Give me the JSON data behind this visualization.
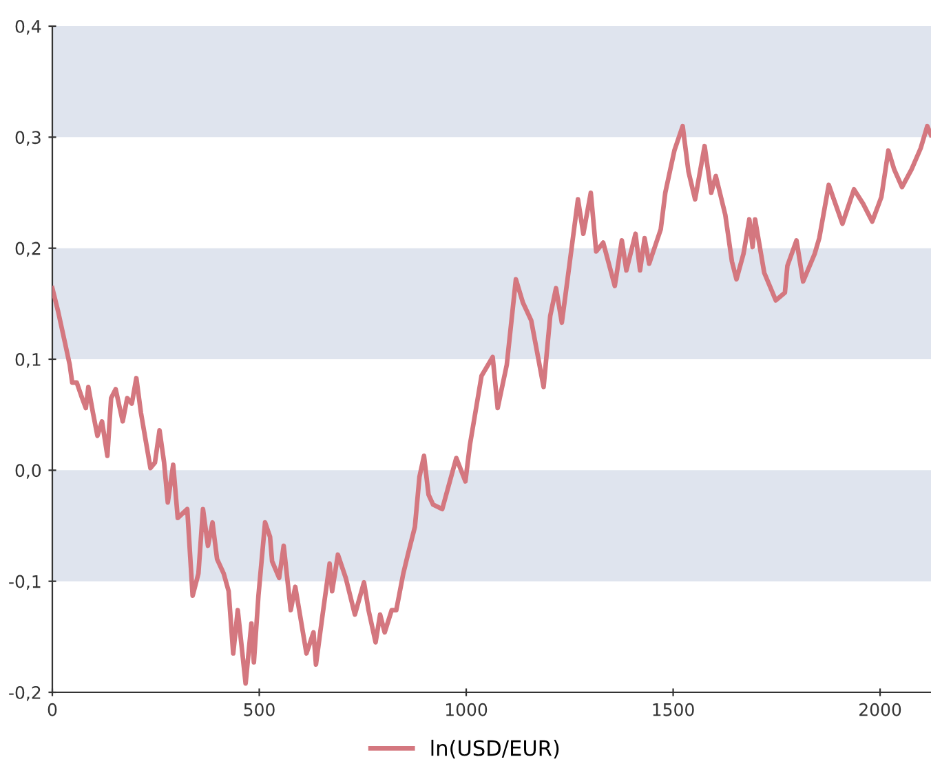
{
  "chart_data": {
    "type": "line",
    "xlim": [
      0,
      2123
    ],
    "xticks": [
      0,
      500,
      1000,
      1500,
      2000
    ],
    "ylim": [
      -0.2,
      0.4
    ],
    "yticks": [
      {
        "value": -0.2,
        "label": "-0,2"
      },
      {
        "value": -0.1,
        "label": "-0,1"
      },
      {
        "value": 0.0,
        "label": "0,0"
      },
      {
        "value": 0.1,
        "label": "0,1"
      },
      {
        "value": 0.2,
        "label": "0,2"
      },
      {
        "value": 0.3,
        "label": "0,3"
      },
      {
        "value": 0.4,
        "label": "0,4"
      }
    ],
    "bands": [
      {
        "axis": "y",
        "from": 0.3,
        "to": 0.4,
        "color": "#dfe4ee"
      },
      {
        "axis": "y",
        "from": 0.1,
        "to": 0.2,
        "color": "#dfe4ee"
      },
      {
        "axis": "y",
        "from": -0.1,
        "to": 0.0,
        "color": "#dfe4ee"
      }
    ],
    "grid": false,
    "legend": "bottom",
    "marker": "none",
    "line_style": "solid",
    "series": [
      {
        "name": "ln(USD/EUR)",
        "color": "#d4777f",
        "x": [
          0,
          14,
          31,
          42,
          48,
          59,
          70,
          81,
          87,
          98,
          109,
          120,
          133,
          142,
          153,
          170,
          181,
          192,
          203,
          214,
          237,
          248,
          259,
          270,
          279,
          292,
          303,
          326,
          339,
          353,
          364,
          376,
          387,
          398,
          414,
          426,
          437,
          448,
          467,
          481,
          487,
          498,
          514,
          526,
          531,
          548,
          559,
          576,
          587,
          614,
          631,
          637,
          653,
          670,
          676,
          690,
          709,
          731,
          753,
          764,
          781,
          792,
          803,
          820,
          831,
          848,
          859,
          876,
          887,
          898,
          909,
          920,
          942,
          959,
          976,
          998,
          1009,
          1037,
          1064,
          1076,
          1098,
          1120,
          1137,
          1157,
          1187,
          1203,
          1217,
          1231,
          1242,
          1270,
          1283,
          1301,
          1314,
          1331,
          1359,
          1376,
          1387,
          1409,
          1420,
          1431,
          1442,
          1470,
          1481,
          1503,
          1523,
          1537,
          1553,
          1576,
          1592,
          1603,
          1626,
          1642,
          1653,
          1670,
          1684,
          1692,
          1698,
          1720,
          1748,
          1770,
          1776,
          1798,
          1814,
          1842,
          1853,
          1876,
          1892,
          1909,
          1937,
          1959,
          1981,
          2003,
          2020,
          2034,
          2053,
          2076,
          2098,
          2114,
          2123
        ],
        "values": [
          0.164,
          0.143,
          0.114,
          0.095,
          0.079,
          0.079,
          0.067,
          0.056,
          0.075,
          0.052,
          0.031,
          0.044,
          0.013,
          0.065,
          0.073,
          0.044,
          0.065,
          0.06,
          0.083,
          0.052,
          0.002,
          0.007,
          0.036,
          0.007,
          -0.029,
          0.005,
          -0.043,
          -0.035,
          -0.113,
          -0.093,
          -0.035,
          -0.068,
          -0.047,
          -0.08,
          -0.093,
          -0.109,
          -0.165,
          -0.126,
          -0.192,
          -0.138,
          -0.173,
          -0.113,
          -0.047,
          -0.06,
          -0.082,
          -0.097,
          -0.068,
          -0.126,
          -0.105,
          -0.165,
          -0.146,
          -0.175,
          -0.13,
          -0.084,
          -0.109,
          -0.076,
          -0.097,
          -0.13,
          -0.101,
          -0.126,
          -0.155,
          -0.13,
          -0.146,
          -0.126,
          -0.126,
          -0.093,
          -0.076,
          -0.051,
          -0.006,
          0.013,
          -0.022,
          -0.031,
          -0.035,
          -0.012,
          0.011,
          -0.01,
          0.023,
          0.085,
          0.102,
          0.056,
          0.095,
          0.172,
          0.151,
          0.135,
          0.075,
          0.139,
          0.164,
          0.133,
          0.164,
          0.244,
          0.213,
          0.25,
          0.197,
          0.205,
          0.166,
          0.207,
          0.18,
          0.213,
          0.18,
          0.209,
          0.186,
          0.217,
          0.25,
          0.288,
          0.31,
          0.269,
          0.244,
          0.292,
          0.25,
          0.265,
          0.23,
          0.188,
          0.172,
          0.195,
          0.226,
          0.201,
          0.226,
          0.178,
          0.153,
          0.16,
          0.184,
          0.207,
          0.17,
          0.195,
          0.209,
          0.257,
          0.24,
          0.222,
          0.253,
          0.24,
          0.224,
          0.246,
          0.288,
          0.271,
          0.255,
          0.271,
          0.29,
          0.31,
          0.302
        ]
      }
    ]
  }
}
